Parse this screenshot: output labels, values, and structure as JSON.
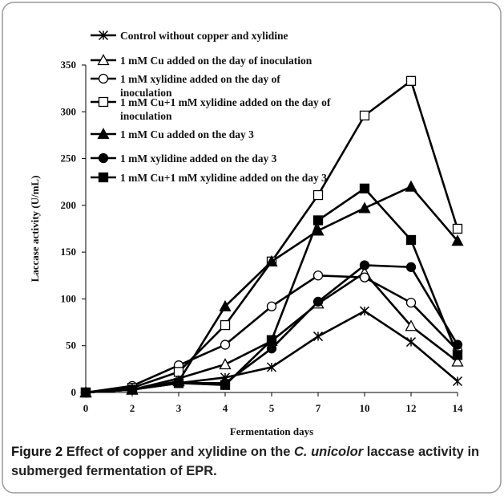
{
  "chart_data": {
    "type": "line",
    "x_label": "Fermentation days",
    "y_label": "Laccase activity (U/mL)",
    "categories": [
      "0",
      "2",
      "3",
      "4",
      "5",
      "7",
      "10",
      "12",
      "14"
    ],
    "ylim": [
      0,
      350
    ],
    "yticks": [
      0,
      50,
      100,
      150,
      200,
      250,
      300,
      350
    ],
    "series": [
      {
        "name": "Control without copper and xylidine",
        "color": "#000",
        "marker": "asterisk",
        "values": [
          0,
          3,
          10,
          16,
          27,
          60,
          87,
          54,
          12
        ]
      },
      {
        "name": "1 mM Cu added on the day of inoculation",
        "color": "#000",
        "marker": "triangle-open",
        "values": [
          0,
          3,
          15,
          30,
          55,
          95,
          128,
          71,
          33
        ]
      },
      {
        "name": "1 mM xylidine added on the day of inoculation",
        "color": "#000",
        "marker": "circle-open",
        "values": [
          0,
          7,
          29,
          51,
          92,
          125,
          123,
          96,
          45
        ]
      },
      {
        "name": "1 mM Cu+1 mM xylidine added on the day of inoculation",
        "color": "#000",
        "marker": "square-open",
        "values": [
          0,
          5,
          22,
          72,
          140,
          211,
          296,
          333,
          175
        ]
      },
      {
        "name": "1 mM Cu added on the day 3",
        "color": "#000",
        "marker": "triangle",
        "values": [
          0,
          3,
          12,
          92,
          140,
          173,
          197,
          220,
          162
        ]
      },
      {
        "name": "1 mM xylidine added on the day 3",
        "color": "#000",
        "marker": "circle",
        "values": [
          0,
          3,
          10,
          10,
          47,
          97,
          136,
          134,
          51
        ]
      },
      {
        "name": "1 mM Cu+1 mM xylidine added on the day 3",
        "color": "#000",
        "marker": "square",
        "values": [
          0,
          3,
          10,
          8,
          56,
          184,
          218,
          163,
          40
        ]
      }
    ]
  },
  "caption": {
    "label": "Figure 2",
    "text_before": "Effect of copper and xylidine on the",
    "italic": "C. unicolor",
    "text_after": "laccase activity in submerged fermentation of EPR."
  }
}
